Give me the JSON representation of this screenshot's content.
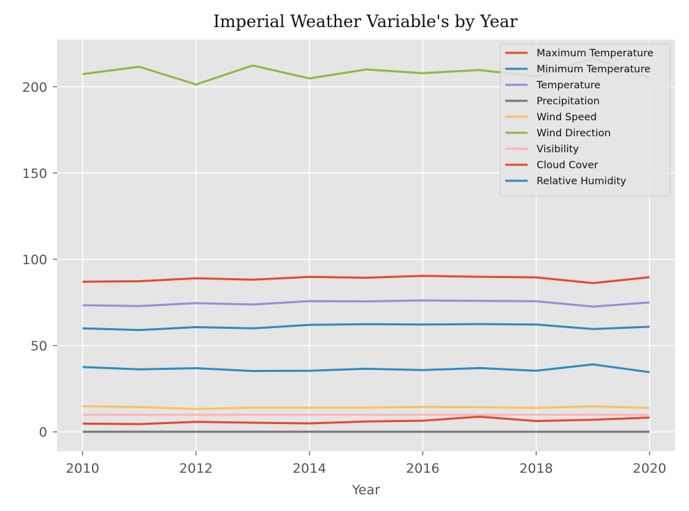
{
  "chart_data": {
    "type": "line",
    "title": "Imperial Weather Variable's by Year",
    "xlabel": "Year",
    "ylabel": "",
    "xlim": [
      2009.55,
      2020.45
    ],
    "ylim": [
      -11.2,
      227.3
    ],
    "xticks": [
      2010,
      2012,
      2014,
      2016,
      2018,
      2020
    ],
    "yticks": [
      0,
      50,
      100,
      150,
      200
    ],
    "grid": true,
    "legend_position": "top-right",
    "x": [
      2010,
      2011,
      2012,
      2013,
      2014,
      2015,
      2016,
      2017,
      2018,
      2019,
      2020
    ],
    "series": [
      {
        "name": "Maximum Temperature",
        "color": "#E24A33",
        "values": [
          87.0,
          87.3,
          89.0,
          88.2,
          89.8,
          89.3,
          90.4,
          89.9,
          89.5,
          86.2,
          89.6
        ]
      },
      {
        "name": "Minimum Temperature",
        "color": "#348ABD",
        "values": [
          60.0,
          59.0,
          60.7,
          60.0,
          62.0,
          62.4,
          62.2,
          62.5,
          62.2,
          59.6,
          60.9
        ]
      },
      {
        "name": "Temperature",
        "color": "#988ED5",
        "values": [
          73.4,
          72.9,
          74.6,
          73.8,
          75.8,
          75.6,
          76.2,
          75.9,
          75.7,
          72.6,
          75.0
        ]
      },
      {
        "name": "Precipitation",
        "color": "#777777",
        "values": [
          0.1,
          0.1,
          0.1,
          0.1,
          0.1,
          0.1,
          0.1,
          0.1,
          0.1,
          0.1,
          0.1
        ]
      },
      {
        "name": "Wind Speed",
        "color": "#FBC15E",
        "values": [
          14.9,
          14.4,
          13.3,
          14.0,
          14.0,
          14.0,
          14.5,
          14.3,
          13.9,
          14.8,
          13.9
        ]
      },
      {
        "name": "Wind Direction",
        "color": "#8EBA42",
        "values": [
          207.3,
          211.6,
          201.3,
          212.3,
          204.8,
          210.0,
          207.9,
          209.7,
          205.9,
          216.5,
          205.2
        ]
      },
      {
        "name": "Visibility",
        "color": "#FFB5B8",
        "values": [
          9.9,
          9.9,
          9.9,
          9.9,
          9.9,
          9.9,
          9.9,
          9.9,
          9.9,
          9.9,
          9.9
        ]
      },
      {
        "name": "Cloud Cover",
        "color": "#E24A33",
        "values": [
          4.8,
          4.5,
          5.8,
          5.3,
          4.9,
          6.0,
          6.5,
          8.8,
          6.3,
          7.0,
          8.3
        ]
      },
      {
        "name": "Relative Humidity",
        "color": "#348ABD",
        "values": [
          37.6,
          36.2,
          36.9,
          35.3,
          35.4,
          36.6,
          35.8,
          37.0,
          35.4,
          39.1,
          34.6
        ]
      }
    ]
  }
}
